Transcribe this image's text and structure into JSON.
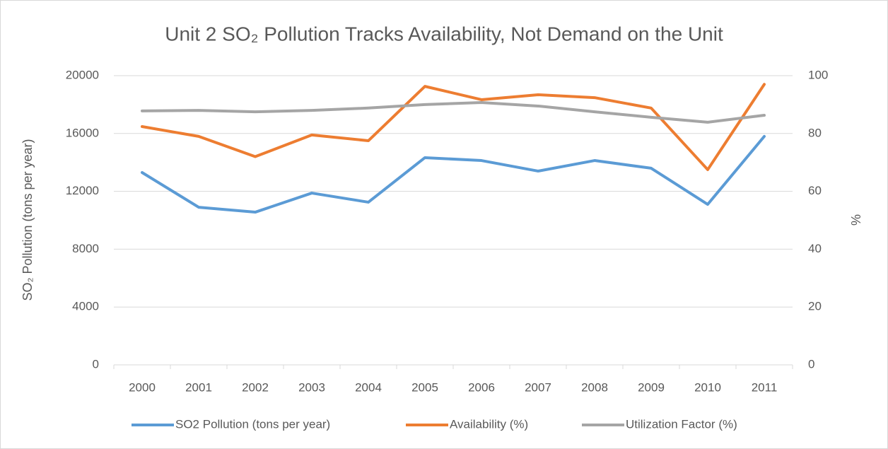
{
  "chart_data": {
    "type": "line",
    "title": "Unit 2 SO₂ Pollution Tracks Availability, Not Demand on the Unit",
    "y_label": "SO₂ Pollution (tons per year)",
    "y2_label": "%",
    "categories": [
      "2000",
      "2001",
      "2002",
      "2003",
      "2004",
      "2005",
      "2006",
      "2007",
      "2008",
      "2009",
      "2010",
      "2011"
    ],
    "ylim": [
      0,
      20000
    ],
    "yticks": [
      0,
      4000,
      8000,
      12000,
      16000,
      20000
    ],
    "y2lim": [
      0,
      100
    ],
    "y2ticks": [
      0,
      20,
      40,
      60,
      80,
      100
    ],
    "grid": true,
    "legend": "bottom",
    "series": [
      {
        "name": "SO2 Pollution (tons per year)",
        "color": "#5b9bd5",
        "values": [
          13300,
          10900,
          10560,
          11880,
          11250,
          14330,
          14130,
          13400,
          14130,
          13600,
          11100,
          15800
        ]
      },
      {
        "name": "Availability (%)",
        "color": "#ed7d31",
        "axis": "y2",
        "values": [
          82.4,
          79,
          72,
          79.5,
          77.5,
          96.3,
          91.7,
          93.4,
          92.4,
          88.8,
          67.5,
          97
        ]
      },
      {
        "name": "Utilization Factor (%)",
        "color": "#a5a5a5",
        "axis": "y2",
        "values": [
          87.8,
          88,
          87.5,
          88,
          88.8,
          90,
          90.7,
          89.5,
          87.5,
          85.6,
          83.9,
          86.3
        ]
      }
    ]
  }
}
